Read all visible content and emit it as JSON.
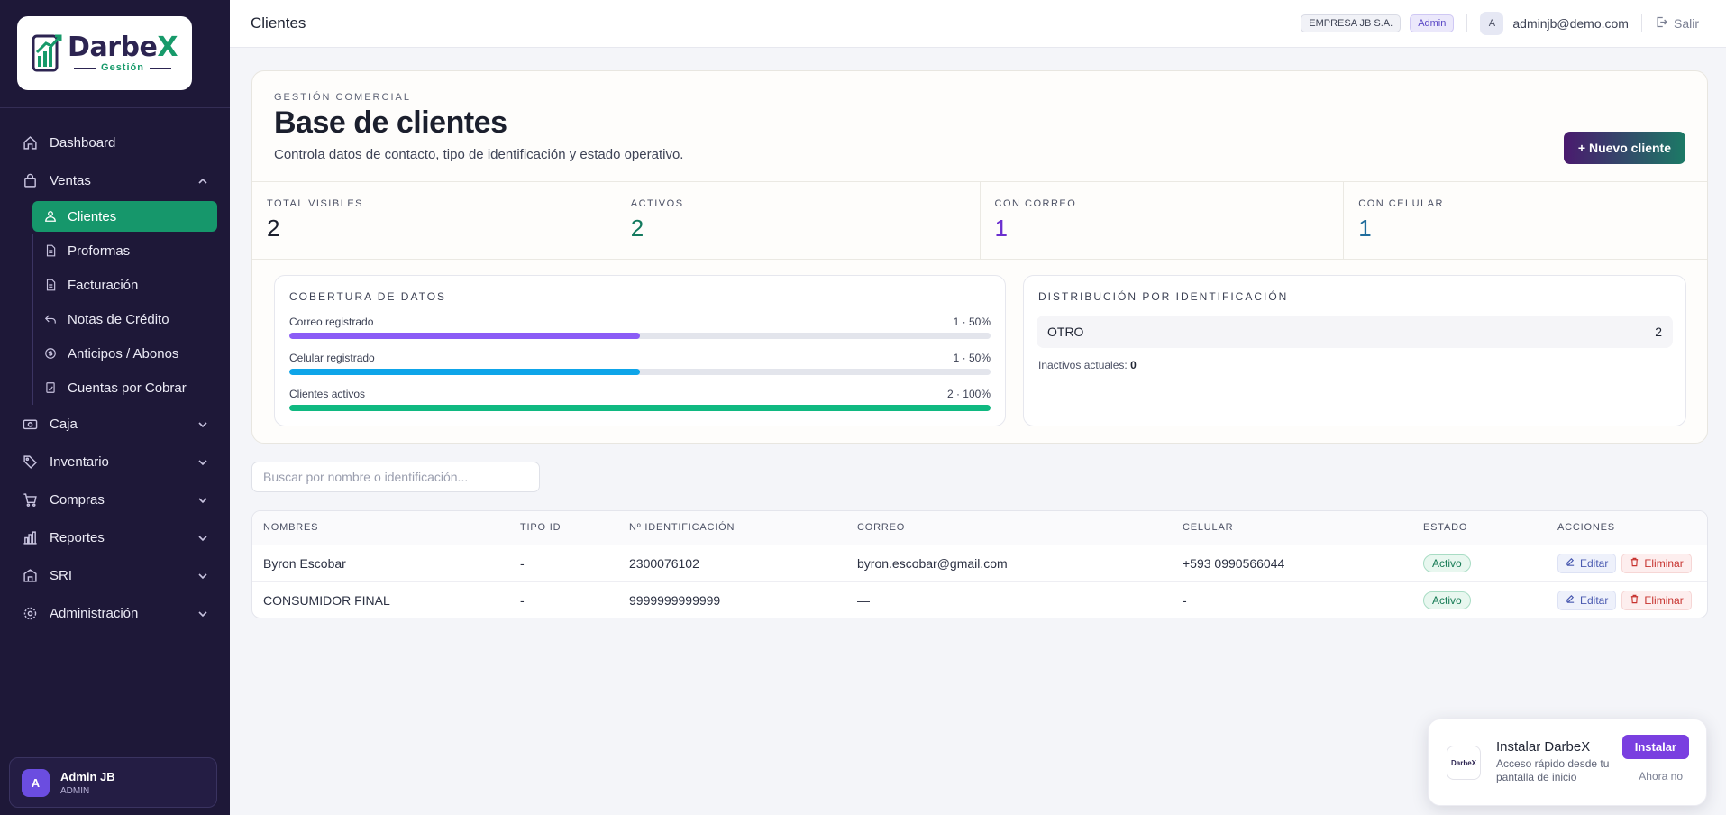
{
  "brand": {
    "name_main": "Darbe",
    "name_x": "X",
    "subtitle": "Gestión"
  },
  "sidebar": {
    "items": [
      {
        "label": "Dashboard",
        "icon": "home-icon"
      },
      {
        "label": "Ventas",
        "icon": "bag-icon",
        "expanded": true,
        "children": [
          {
            "label": "Clientes",
            "icon": "users-icon",
            "active": true
          },
          {
            "label": "Proformas",
            "icon": "document-icon"
          },
          {
            "label": "Facturación",
            "icon": "document-icon"
          },
          {
            "label": "Notas de Crédito",
            "icon": "undo-icon"
          },
          {
            "label": "Anticipos / Abonos",
            "icon": "coin-icon"
          },
          {
            "label": "Cuentas por Cobrar",
            "icon": "receipt-icon"
          }
        ]
      },
      {
        "label": "Caja",
        "icon": "cash-icon"
      },
      {
        "label": "Inventario",
        "icon": "tag-icon"
      },
      {
        "label": "Compras",
        "icon": "cart-icon"
      },
      {
        "label": "Reportes",
        "icon": "bar-chart-icon"
      },
      {
        "label": "SRI",
        "icon": "bank-icon"
      },
      {
        "label": "Administración",
        "icon": "gear-icon"
      }
    ],
    "user": {
      "initial": "A",
      "name": "Admin JB",
      "role": "ADMIN"
    }
  },
  "topbar": {
    "title": "Clientes",
    "company": "EMPRESA JB S.A.",
    "role_chip": "Admin",
    "avatar_initial": "A",
    "email": "adminjb@demo.com",
    "logout": "Salir"
  },
  "hero": {
    "eyebrow": "GESTIÓN COMERCIAL",
    "title": "Base de clientes",
    "description": "Controla datos de contacto, tipo de identificación y estado operativo.",
    "new_button": "+ Nuevo cliente"
  },
  "stats": [
    {
      "label": "TOTAL VISIBLES",
      "value": "2",
      "color": "#1b1f2d"
    },
    {
      "label": "ACTIVOS",
      "value": "2",
      "color": "#137a5e"
    },
    {
      "label": "CON CORREO",
      "value": "1",
      "color": "#6b2fcf"
    },
    {
      "label": "CON CELULAR",
      "value": "1",
      "color": "#1f6c9c"
    }
  ],
  "coverage": {
    "title": "COBERTURA DE DATOS",
    "rows": [
      {
        "label": "Correo registrado",
        "value": "1 · 50%",
        "fraction": 0.5,
        "color": "#8b5cf6"
      },
      {
        "label": "Celular registrado",
        "value": "1 · 50%",
        "fraction": 0.5,
        "color": "#0ea5e9"
      },
      {
        "label": "Clientes activos",
        "value": "2 · 100%",
        "fraction": 1.0,
        "color": "#10b981"
      }
    ]
  },
  "distribution": {
    "title": "DISTRIBUCIÓN POR IDENTIFICACIÓN",
    "rows": [
      {
        "label": "OTRO",
        "count": "2"
      }
    ],
    "inactive_label": "Inactivos actuales:",
    "inactive_value": "0"
  },
  "search": {
    "placeholder": "Buscar por nombre o identificación..."
  },
  "table": {
    "headers": [
      "NOMBRES",
      "TIPO ID",
      "Nº IDENTIFICACIÓN",
      "CORREO",
      "CELULAR",
      "ESTADO",
      "ACCIONES"
    ],
    "rows": [
      {
        "name": "Byron Escobar",
        "tipo": "-",
        "ident": "2300076102",
        "email": "byron.escobar@gmail.com",
        "phone": "+593 0990566044",
        "status": "Activo"
      },
      {
        "name": "CONSUMIDOR FINAL",
        "tipo": "-",
        "ident": "9999999999999",
        "email": "—",
        "phone": "-",
        "status": "Activo"
      }
    ],
    "edit_label": "Editar",
    "delete_label": "Eliminar"
  },
  "install": {
    "logo_text": "DarbeX",
    "title": "Instalar DarbeX",
    "description": "Acceso rápido desde tu pantalla de inicio",
    "install_button": "Instalar",
    "later_button": "Ahora no"
  }
}
